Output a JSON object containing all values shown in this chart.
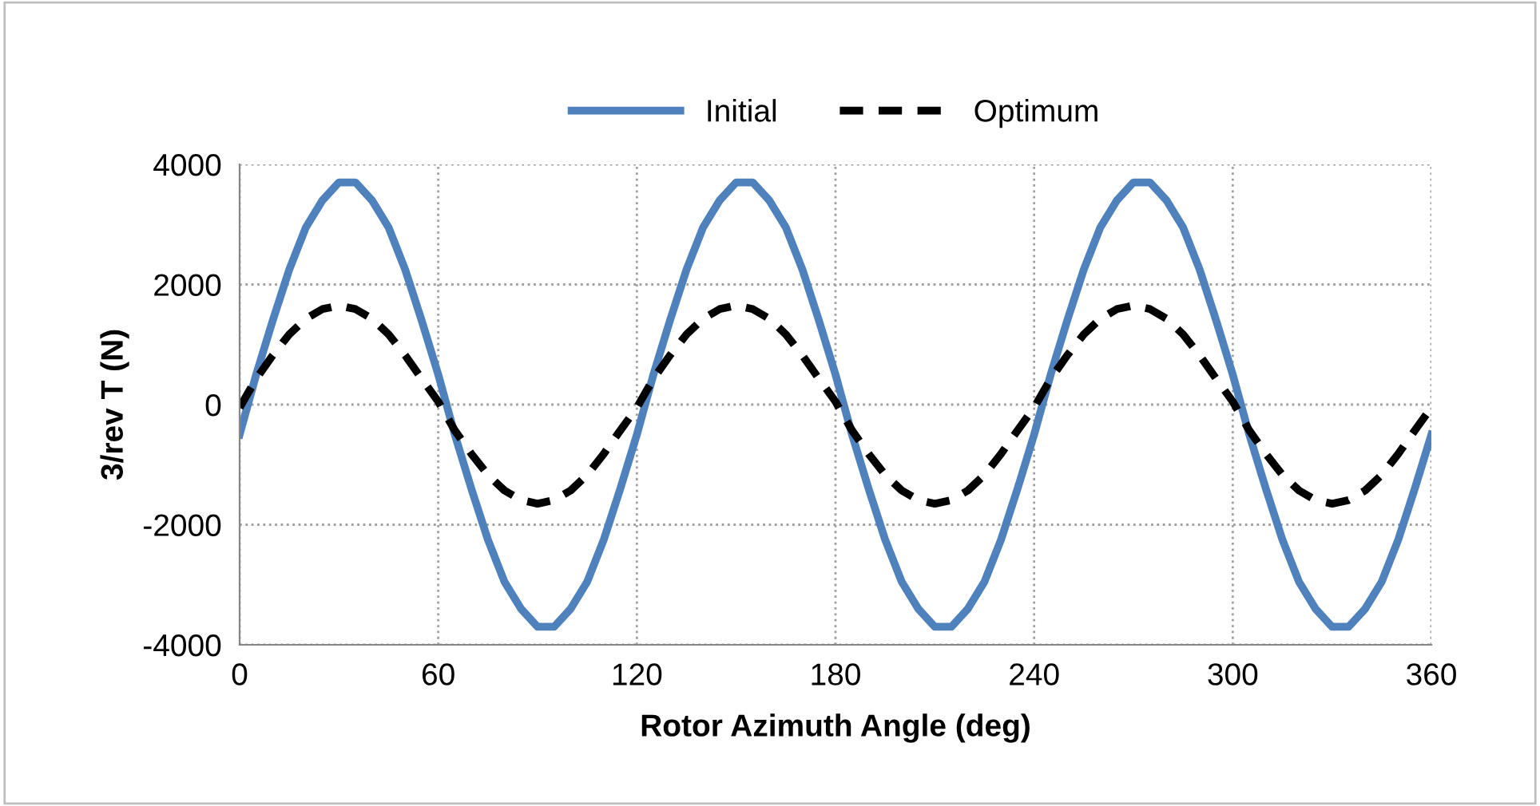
{
  "chart_data": {
    "type": "line",
    "xlabel": "Rotor Azimuth Angle (deg)",
    "ylabel": "3/rev T (N)",
    "x": [
      0,
      5,
      10,
      15,
      20,
      25,
      30,
      35,
      40,
      45,
      50,
      55,
      60,
      65,
      70,
      75,
      80,
      85,
      90,
      95,
      100,
      105,
      110,
      115,
      120,
      125,
      130,
      135,
      140,
      145,
      150,
      155,
      160,
      165,
      170,
      175,
      180,
      185,
      190,
      195,
      200,
      205,
      210,
      215,
      220,
      225,
      230,
      235,
      240,
      245,
      250,
      255,
      260,
      265,
      270,
      275,
      280,
      285,
      290,
      295,
      300,
      305,
      310,
      315,
      320,
      325,
      330,
      335,
      340,
      345,
      350,
      355,
      360
    ],
    "series": [
      {
        "name": "Initial",
        "color": "#4f81bd",
        "line_style": "solid",
        "values": [
          -500,
          500,
          1400,
          2250,
          2950,
          3400,
          3700,
          3700,
          3400,
          2950,
          2250,
          1400,
          500,
          -500,
          -1400,
          -2250,
          -2950,
          -3400,
          -3700,
          -3700,
          -3400,
          -2950,
          -2250,
          -1400,
          -500,
          500,
          1400,
          2250,
          2950,
          3400,
          3700,
          3700,
          3400,
          2950,
          2250,
          1400,
          500,
          -500,
          -1400,
          -2250,
          -2950,
          -3400,
          -3700,
          -3700,
          -3400,
          -2950,
          -2250,
          -1400,
          -500,
          500,
          1400,
          2250,
          2950,
          3400,
          3700,
          3700,
          3400,
          2950,
          2250,
          1400,
          500,
          -500,
          -1400,
          -2250,
          -2950,
          -3400,
          -3700,
          -3700,
          -3400,
          -2950,
          -2250,
          -1400,
          -500
        ]
      },
      {
        "name": "Optimum",
        "color": "#000000",
        "line_style": "dashed",
        "values": [
          -50,
          430,
          820,
          1170,
          1430,
          1590,
          1650,
          1590,
          1430,
          1170,
          820,
          430,
          50,
          -430,
          -820,
          -1170,
          -1430,
          -1590,
          -1650,
          -1590,
          -1430,
          -1170,
          -820,
          -430,
          -50,
          430,
          820,
          1170,
          1430,
          1590,
          1650,
          1590,
          1430,
          1170,
          820,
          430,
          50,
          -430,
          -820,
          -1170,
          -1430,
          -1590,
          -1650,
          -1590,
          -1430,
          -1170,
          -820,
          -430,
          -50,
          430,
          820,
          1170,
          1430,
          1590,
          1650,
          1590,
          1430,
          1170,
          820,
          430,
          50,
          -430,
          -820,
          -1170,
          -1430,
          -1590,
          -1650,
          -1590,
          -1430,
          -1170,
          -820,
          -430,
          -50
        ]
      }
    ],
    "xlim": [
      0,
      360
    ],
    "xticks": [
      0,
      60,
      120,
      180,
      240,
      300,
      360
    ],
    "ylim": [
      -4000,
      4000
    ],
    "yticks": [
      -4000,
      -2000,
      0,
      2000,
      4000
    ],
    "grid": true,
    "legend": "top",
    "marker": "none"
  }
}
